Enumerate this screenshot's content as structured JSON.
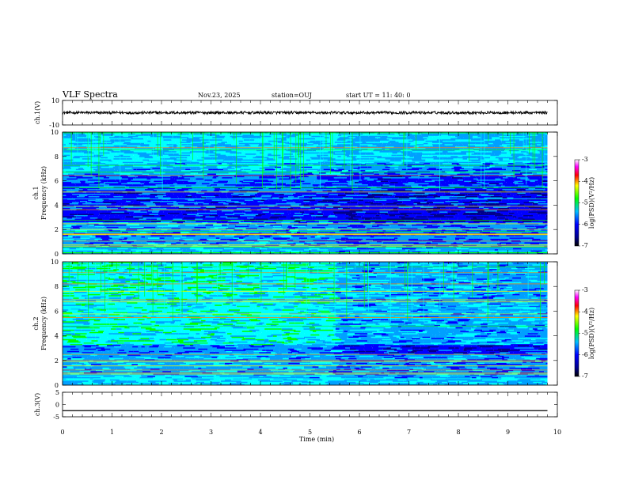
{
  "header": {
    "title": "VLF Spectra",
    "date": "Nov.23, 2025",
    "station": "station=OUJ",
    "start_ut": "start  UT =   11: 40: 0"
  },
  "chart_data": [
    {
      "type": "line",
      "name": "ch1-waveform",
      "ylabel": "ch.1(V)",
      "ylim": [
        -10,
        10
      ],
      "yticks": [
        "10",
        "-10"
      ],
      "xlim": [
        0,
        10
      ],
      "series": [
        {
          "x": [
            0,
            9.8
          ],
          "y": [
            0,
            0
          ]
        }
      ]
    },
    {
      "type": "heatmap",
      "name": "ch1-spectrogram",
      "ylabel_channel": "ch.1",
      "ylabel": "Frequency (kHz)",
      "ylim": [
        0,
        10
      ],
      "yticks": [
        "0",
        "2",
        "4",
        "6",
        "8",
        "10"
      ],
      "xlim": [
        0,
        10
      ],
      "data_extent_min": 9.8,
      "colorbar": {
        "label": "log(PSD)(V²/Hz)",
        "range": [
          -7,
          -3
        ],
        "ticks": [
          "-3",
          "-4",
          "-5",
          "-6",
          "-7"
        ]
      }
    },
    {
      "type": "heatmap",
      "name": "ch2-spectrogram",
      "ylabel_channel": "ch.2",
      "ylabel": "Frequency (kHz)",
      "ylim": [
        0,
        10
      ],
      "yticks": [
        "0",
        "2",
        "4",
        "6",
        "8",
        "10"
      ],
      "xlim": [
        0,
        10
      ],
      "data_extent_min": 9.8,
      "colorbar": {
        "label": "log(PSD)(V²/Hz)",
        "range": [
          -7,
          -3
        ],
        "ticks": [
          "-3",
          "-4",
          "-5",
          "-6",
          "-7"
        ]
      }
    },
    {
      "type": "line",
      "name": "ch3-waveform",
      "ylabel": "ch.3(V)",
      "ylim": [
        -5,
        5
      ],
      "yticks": [
        "5",
        "0",
        "-5"
      ],
      "xlim": [
        0,
        10
      ],
      "series": [
        {
          "x": [
            0,
            9.8
          ],
          "y": [
            -2.5,
            -2.5
          ]
        }
      ]
    }
  ],
  "xaxis": {
    "label": "Time (min)",
    "ticks": [
      "0",
      "1",
      "2",
      "3",
      "4",
      "5",
      "6",
      "7",
      "8",
      "9",
      "10"
    ]
  },
  "colors": {
    "colormap": [
      "#00008b",
      "#0000ff",
      "#00a0ff",
      "#00ffff",
      "#00ff00",
      "#ffff00",
      "#ff8000",
      "#ff0000",
      "#ff00ff"
    ],
    "trace": "#000000"
  }
}
